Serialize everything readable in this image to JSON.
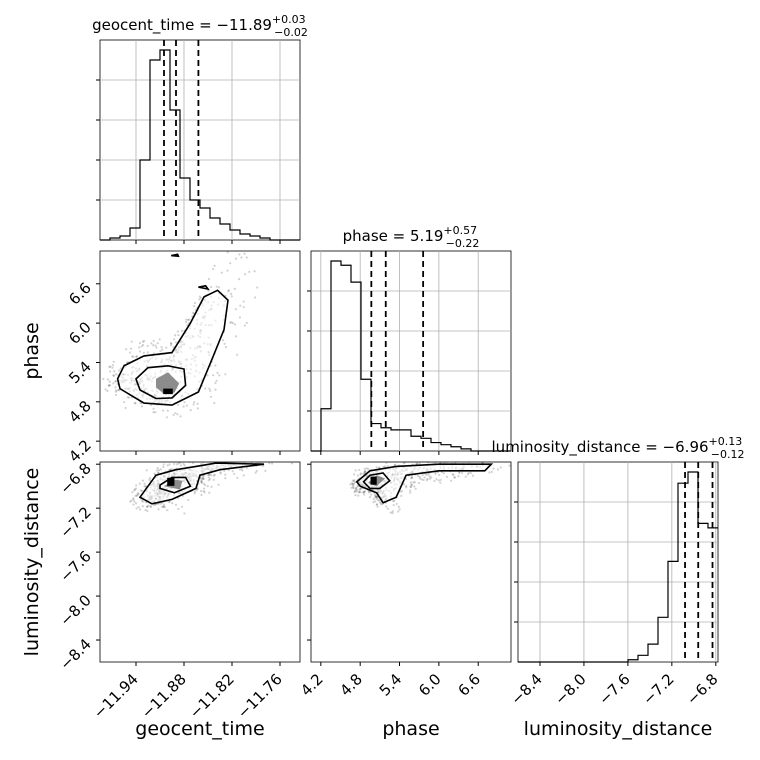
{
  "chart_data": {
    "type": "corner",
    "parameters": [
      {
        "name": "geocent_time",
        "median": "−11.89",
        "plus": "+0.03",
        "minus": "−0.02",
        "quantiles": [
          -11.905,
          -11.89,
          -11.862
        ],
        "range": [
          -11.985,
          -11.735
        ],
        "ticks": [
          -11.94,
          -11.88,
          -11.82,
          -11.76
        ],
        "tick_labels": [
          "−11.94",
          "−11.88",
          "−11.82",
          "−11.76"
        ]
      },
      {
        "name": "phase",
        "median": "5.19",
        "plus": "+0.57",
        "minus": "−0.22",
        "quantiles": [
          4.97,
          5.19,
          5.76
        ],
        "range": [
          4.05,
          7.1
        ],
        "ticks": [
          4.2,
          4.8,
          5.4,
          6.0,
          6.6
        ],
        "tick_labels": [
          "4.2",
          "4.8",
          "5.4",
          "6.0",
          "6.6"
        ]
      },
      {
        "name": "luminosity_distance",
        "median": "−6.96",
        "plus": "+0.13",
        "minus": "−0.12",
        "quantiles": [
          -7.08,
          -6.96,
          -6.83
        ],
        "range": [
          -8.6,
          -6.78
        ],
        "ticks": [
          -8.4,
          -8.0,
          -7.6,
          -7.2,
          -6.8
        ],
        "tick_labels": [
          "−8.4",
          "−8.0",
          "−7.6",
          "−7.2",
          "−6.8"
        ]
      }
    ],
    "histograms": [
      {
        "param": "geocent_time",
        "edges_start": -11.985,
        "bin_width": 0.0125,
        "counts": [
          0,
          1,
          2,
          6,
          40,
          90,
          95,
          65,
          31,
          20,
          16,
          11,
          8,
          5,
          3,
          2,
          1,
          0,
          0,
          0
        ]
      },
      {
        "param": "phase",
        "edges_start": 4.05,
        "bin_width": 0.1525,
        "counts": [
          0,
          20,
          90,
          88,
          80,
          34,
          13,
          11,
          10,
          10,
          7,
          6,
          4,
          3,
          2,
          1,
          0,
          0,
          0,
          0
        ]
      },
      {
        "param": "luminosity_distance",
        "edges_start": -8.6,
        "bin_width": 0.091,
        "counts": [
          0,
          0,
          0,
          0,
          0,
          0,
          0,
          0,
          0,
          0,
          0,
          1,
          3,
          8,
          20,
          45,
          80,
          85,
          62,
          60
        ]
      }
    ],
    "pairs": [
      {
        "x": "geocent_time",
        "y": "phase",
        "contours": [
          [
            [
              -11.935,
              4.98
            ],
            [
              -11.915,
              4.85
            ],
            [
              -11.895,
              4.86
            ],
            [
              -11.878,
              5.05
            ],
            [
              -11.88,
              5.3
            ],
            [
              -11.9,
              5.35
            ],
            [
              -11.925,
              5.32
            ],
            [
              -11.94,
              5.15
            ],
            [
              -11.935,
              4.98
            ]
          ],
          [
            [
              -11.96,
              5.0
            ],
            [
              -11.93,
              4.78
            ],
            [
              -11.895,
              4.75
            ],
            [
              -11.862,
              4.95
            ],
            [
              -11.845,
              5.45
            ],
            [
              -11.83,
              5.9
            ],
            [
              -11.825,
              6.35
            ],
            [
              -11.838,
              6.5
            ],
            [
              -11.855,
              6.4
            ],
            [
              -11.872,
              6.0
            ],
            [
              -11.895,
              5.55
            ],
            [
              -11.93,
              5.5
            ],
            [
              -11.955,
              5.35
            ],
            [
              -11.963,
              5.15
            ],
            [
              -11.96,
              5.0
            ]
          ],
          [
            [
              -11.905,
              4.93
            ],
            [
              -11.895,
              4.93
            ],
            [
              -11.895,
              4.99
            ],
            [
              -11.905,
              4.99
            ],
            [
              -11.905,
              4.93
            ]
          ],
          [
            [
              -11.896,
              7.03
            ],
            [
              -11.887,
              7.02
            ],
            [
              -11.888,
              7.05
            ],
            [
              -11.896,
              7.03
            ]
          ],
          [
            [
              -11.862,
              6.55
            ],
            [
              -11.85,
              6.52
            ],
            [
              -11.853,
              6.57
            ],
            [
              -11.862,
              6.55
            ]
          ]
        ],
        "fill_contour": [
          [
            -11.915,
            5.02
          ],
          [
            -11.905,
            4.92
          ],
          [
            -11.892,
            4.94
          ],
          [
            -11.886,
            5.08
          ],
          [
            -11.9,
            5.25
          ],
          [
            -11.915,
            5.15
          ],
          [
            -11.915,
            5.02
          ]
        ]
      },
      {
        "x": "geocent_time",
        "y": "luminosity_distance",
        "contours": [
          [
            [
              -11.91,
              -6.99
            ],
            [
              -11.895,
              -6.92
            ],
            [
              -11.878,
              -6.92
            ],
            [
              -11.872,
              -7.0
            ],
            [
              -11.892,
              -7.06
            ],
            [
              -11.91,
              -7.02
            ],
            [
              -11.91,
              -6.99
            ]
          ],
          [
            [
              -11.935,
              -7.1
            ],
            [
              -11.915,
              -6.9
            ],
            [
              -11.89,
              -6.85
            ],
            [
              -11.865,
              -6.82
            ],
            [
              -11.84,
              -6.79
            ],
            [
              -11.78,
              -6.8
            ],
            [
              -11.835,
              -6.85
            ],
            [
              -11.86,
              -6.9
            ],
            [
              -11.865,
              -7.02
            ],
            [
              -11.895,
              -7.12
            ],
            [
              -11.92,
              -7.16
            ],
            [
              -11.935,
              -7.1
            ]
          ],
          [
            [
              -11.9,
              -6.99
            ],
            [
              -11.893,
              -6.99
            ],
            [
              -11.893,
              -6.93
            ],
            [
              -11.9,
              -6.93
            ],
            [
              -11.9,
              -6.99
            ]
          ]
        ],
        "fill_contour": [
          [
            -11.905,
            -7.0
          ],
          [
            -11.893,
            -6.94
          ],
          [
            -11.882,
            -6.95
          ],
          [
            -11.885,
            -7.03
          ],
          [
            -11.905,
            -7.0
          ]
        ]
      },
      {
        "x": "phase",
        "y": "luminosity_distance",
        "contours": [
          [
            [
              4.85,
              -6.96
            ],
            [
              4.95,
              -6.9
            ],
            [
              5.15,
              -6.88
            ],
            [
              5.25,
              -6.95
            ],
            [
              5.1,
              -7.02
            ],
            [
              4.95,
              -7.02
            ],
            [
              4.85,
              -6.96
            ]
          ],
          [
            [
              4.75,
              -6.96
            ],
            [
              4.95,
              -6.86
            ],
            [
              5.35,
              -6.82
            ],
            [
              6.0,
              -6.8
            ],
            [
              6.8,
              -6.8
            ],
            [
              6.7,
              -6.86
            ],
            [
              6.0,
              -6.86
            ],
            [
              5.5,
              -6.9
            ],
            [
              5.35,
              -7.1
            ],
            [
              5.15,
              -7.15
            ],
            [
              5.05,
              -7.06
            ],
            [
              4.8,
              -7.0
            ],
            [
              4.75,
              -6.96
            ]
          ],
          [
            [
              4.97,
              -6.98
            ],
            [
              5.04,
              -6.98
            ],
            [
              5.04,
              -6.92
            ],
            [
              4.97,
              -6.92
            ],
            [
              4.97,
              -6.98
            ]
          ]
        ],
        "fill_contour": [
          [
            4.92,
            -6.97
          ],
          [
            5.05,
            -6.9
          ],
          [
            5.18,
            -6.93
          ],
          [
            5.05,
            -7.0
          ],
          [
            4.92,
            -6.97
          ]
        ]
      }
    ]
  }
}
